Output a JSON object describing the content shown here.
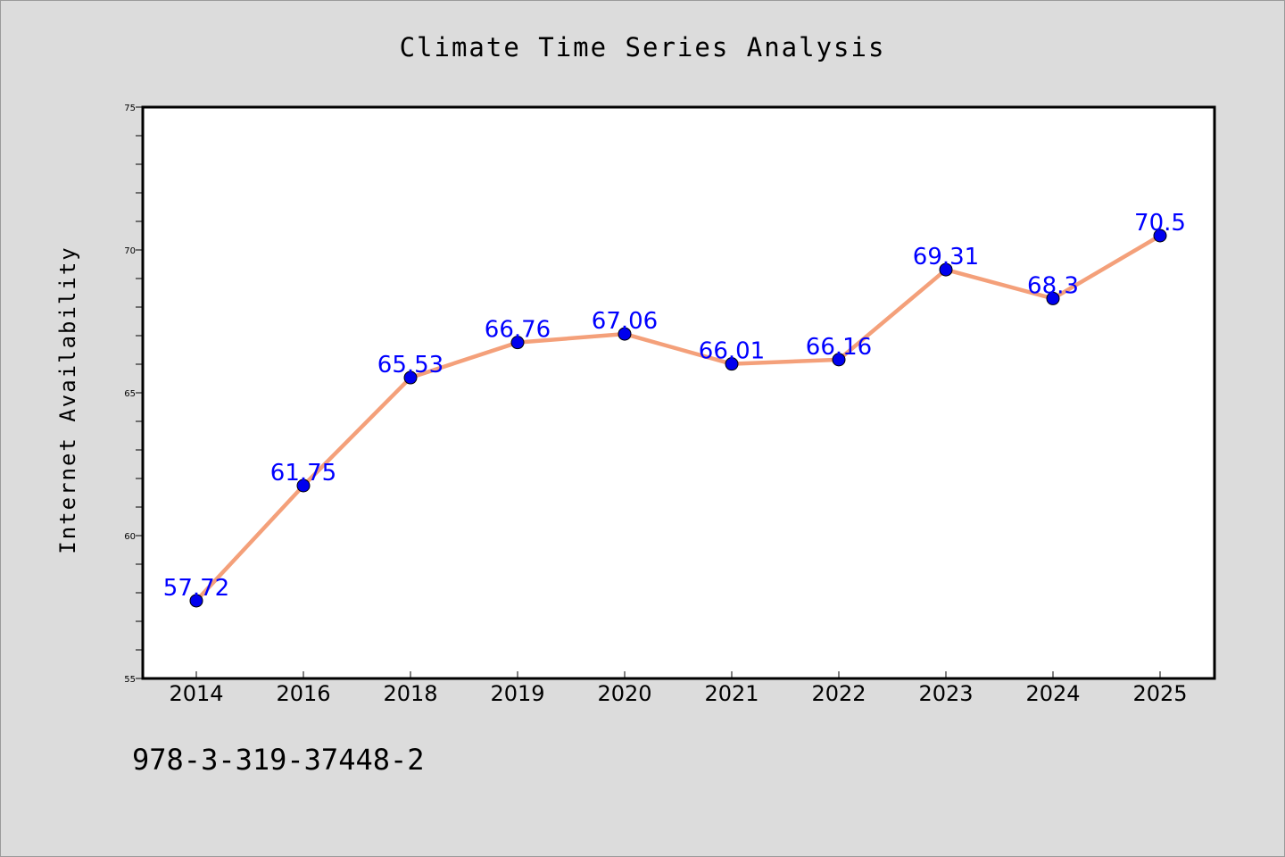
{
  "chart_data": {
    "type": "line",
    "title": "Climate Time Series Analysis",
    "xlabel": "",
    "ylabel": "Internet Availability",
    "categories": [
      "2014",
      "2016",
      "2018",
      "2019",
      "2020",
      "2021",
      "2022",
      "2023",
      "2024",
      "2025"
    ],
    "values": [
      57.72,
      61.75,
      65.53,
      66.76,
      67.06,
      66.01,
      66.16,
      69.31,
      68.3,
      70.5
    ],
    "data_labels": [
      "57.72",
      "61.75",
      "65.53",
      "66.76",
      "67.06",
      "66.01",
      "66.16",
      "69.31",
      "68.3",
      "70.5"
    ],
    "ylim": [
      55,
      75
    ],
    "yticks": [
      "55",
      "60",
      "65",
      "70",
      "75"
    ],
    "grid": false,
    "legend": "none",
    "line_color": "#f4a07a",
    "marker_color": "#0000ee",
    "label_color": "#0000ff"
  },
  "footer": {
    "text": "978-3-319-37448-2"
  }
}
